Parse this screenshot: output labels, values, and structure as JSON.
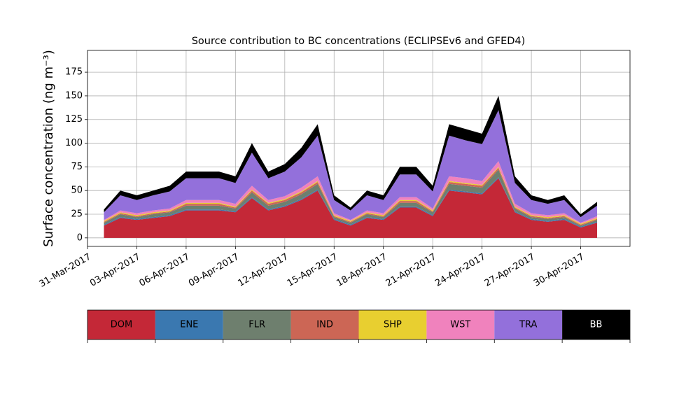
{
  "chart_data": {
    "type": "stacked_area",
    "title": "Source contribution to BC concentrations (ECLIPSEv6 and GFED4)",
    "y_label": "Surface concentration (ng m⁻³)",
    "x": [
      "2017-04-01",
      "2017-04-02",
      "2017-04-03",
      "2017-04-04",
      "2017-04-05",
      "2017-04-06",
      "2017-04-07",
      "2017-04-08",
      "2017-04-09",
      "2017-04-10",
      "2017-04-11",
      "2017-04-12",
      "2017-04-13",
      "2017-04-14",
      "2017-04-15",
      "2017-04-16",
      "2017-04-17",
      "2017-04-18",
      "2017-04-19",
      "2017-04-20",
      "2017-04-21",
      "2017-04-22",
      "2017-04-23",
      "2017-04-24",
      "2017-04-25",
      "2017-04-26",
      "2017-04-27",
      "2017-04-28",
      "2017-04-29",
      "2017-04-30",
      "2017-05-01"
    ],
    "series": [
      {
        "name": "DOM",
        "color": "#c42837",
        "values": [
          13,
          21,
          19,
          21,
          23,
          29,
          29,
          29,
          27,
          42,
          29,
          33,
          40,
          50,
          19,
          13,
          21,
          19,
          32,
          32,
          23,
          50,
          48,
          46,
          63,
          27,
          19,
          17,
          19,
          11,
          16
        ]
      },
      {
        "name": "ENE",
        "color": "#3a78b0",
        "values": [
          1,
          1,
          1,
          1,
          1,
          1,
          1,
          1,
          1,
          1,
          1,
          1,
          1,
          1,
          1,
          1,
          1,
          1,
          1,
          1,
          1,
          1,
          1,
          1,
          1,
          1,
          1,
          1,
          1,
          1,
          1
        ]
      },
      {
        "name": "FLR",
        "color": "#6e7f6e",
        "values": [
          2,
          3,
          2,
          3,
          3,
          4,
          4,
          4,
          3,
          5,
          4,
          4,
          5,
          6,
          2,
          2,
          3,
          2,
          4,
          4,
          3,
          6,
          6,
          6,
          8,
          3,
          2,
          2,
          2,
          1,
          2
        ]
      },
      {
        "name": "IND",
        "color": "#cc6655",
        "values": [
          1,
          1,
          1,
          1,
          1,
          2,
          2,
          2,
          1,
          2,
          2,
          2,
          2,
          2,
          1,
          1,
          1,
          1,
          2,
          2,
          1,
          2,
          2,
          2,
          2,
          1,
          1,
          1,
          1,
          1,
          1
        ]
      },
      {
        "name": "SHP",
        "color": "#e8cf30",
        "values": [
          1,
          1,
          1,
          1,
          1,
          1,
          1,
          1,
          1,
          1,
          1,
          1,
          1,
          1,
          1,
          1,
          1,
          1,
          1,
          1,
          1,
          1,
          1,
          1,
          1,
          1,
          1,
          1,
          1,
          1,
          1
        ]
      },
      {
        "name": "WST",
        "color": "#f082bd",
        "values": [
          1,
          2,
          2,
          2,
          2,
          3,
          3,
          3,
          3,
          4,
          3,
          3,
          4,
          5,
          2,
          1,
          2,
          2,
          3,
          3,
          2,
          5,
          5,
          4,
          6,
          3,
          2,
          2,
          2,
          1,
          2
        ]
      },
      {
        "name": "TRA",
        "color": "#9370db",
        "values": [
          8,
          16,
          14,
          16,
          18,
          23,
          23,
          23,
          22,
          35,
          23,
          26,
          32,
          43,
          14,
          10,
          16,
          14,
          24,
          24,
          18,
          43,
          40,
          39,
          54,
          22,
          14,
          12,
          14,
          6,
          11
        ]
      },
      {
        "name": "BB",
        "color": "#000000",
        "values": [
          3,
          5,
          5,
          5,
          6,
          7,
          7,
          7,
          7,
          10,
          7,
          8,
          10,
          12,
          5,
          3,
          5,
          5,
          8,
          8,
          6,
          12,
          12,
          11,
          15,
          7,
          5,
          4,
          5,
          3,
          4
        ]
      }
    ],
    "xlim": [
      "2017-03-31",
      "2017-05-03"
    ],
    "xticks": [
      {
        "value": "2017-03-31",
        "label": "31-Mar-2017"
      },
      {
        "value": "2017-04-03",
        "label": "03-Apr-2017"
      },
      {
        "value": "2017-04-06",
        "label": "06-Apr-2017"
      },
      {
        "value": "2017-04-09",
        "label": "09-Apr-2017"
      },
      {
        "value": "2017-04-12",
        "label": "12-Apr-2017"
      },
      {
        "value": "2017-04-15",
        "label": "15-Apr-2017"
      },
      {
        "value": "2017-04-18",
        "label": "18-Apr-2017"
      },
      {
        "value": "2017-04-21",
        "label": "21-Apr-2017"
      },
      {
        "value": "2017-04-24",
        "label": "24-Apr-2017"
      },
      {
        "value": "2017-04-27",
        "label": "27-Apr-2017"
      },
      {
        "value": "2017-04-30",
        "label": "30-Apr-2017"
      }
    ],
    "ylim": [
      -9,
      198
    ],
    "yticks": [
      0,
      25,
      50,
      75,
      100,
      125,
      150,
      175
    ],
    "grid": true,
    "legend": "below"
  }
}
